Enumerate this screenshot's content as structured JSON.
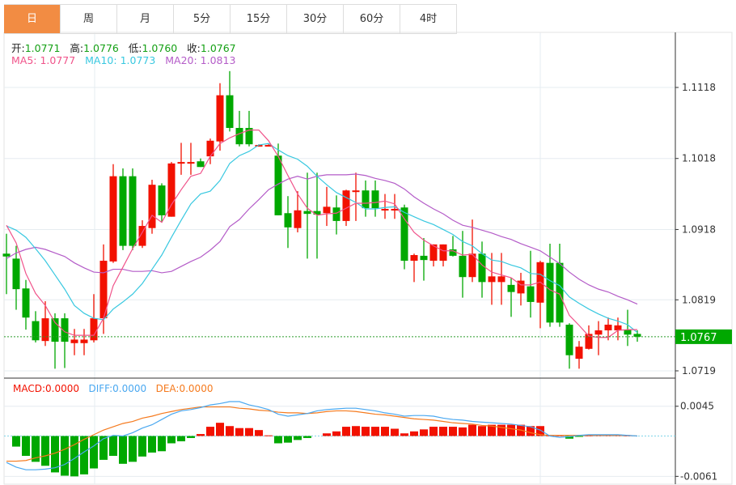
{
  "tabs": [
    "日",
    "周",
    "月",
    "5分",
    "15分",
    "30分",
    "60分",
    "4时"
  ],
  "active_tab": 0,
  "ohlc_info": {
    "open_label": "开:",
    "open": "1.0771",
    "high_label": "高:",
    "high": "1.0776",
    "low_label": "低:",
    "low": "1.0760",
    "close_label": "收:",
    "close": "1.0767"
  },
  "ma_info": {
    "ma5": "MA5: 1.0777",
    "ma10": "MA10: 1.0773",
    "ma20": "MA20: 1.0813"
  },
  "macd_info": {
    "macd": "MACD:0.0000",
    "diff": "DIFF:0.0000",
    "dea": "DEA:0.0000"
  },
  "current_price": "1.0767",
  "colors": {
    "up": "#f21100",
    "down": "#00a800",
    "ma5": "#f0538a",
    "ma10": "#38c8e0",
    "ma20": "#b45cc8",
    "diff": "#4aa8f0",
    "dea": "#f57a1e",
    "tab_active": "#f28c43"
  },
  "chart_data": {
    "type": "candlestick",
    "price_axis": {
      "ticks": [
        "1.1118",
        "1.1018",
        "1.0918",
        "1.0819",
        "1.0719"
      ],
      "range": [
        1.0719,
        1.1118
      ]
    },
    "macd_axis": {
      "ticks": [
        "0.0045",
        "-0.0061"
      ],
      "range": [
        -0.0061,
        0.0045
      ]
    },
    "candles": [
      [
        1.0884,
        1.0912,
        1.0827,
        1.088
      ],
      [
        1.0877,
        1.0895,
        1.0805,
        1.0834
      ],
      [
        1.0835,
        1.0847,
        1.0777,
        1.0794
      ],
      [
        1.0789,
        1.0803,
        1.0759,
        1.0762
      ],
      [
        1.0761,
        1.0817,
        1.0754,
        1.0793
      ],
      [
        1.0793,
        1.08,
        1.0722,
        1.076
      ],
      [
        1.0793,
        1.08,
        1.0723,
        1.076
      ],
      [
        1.0758,
        1.0778,
        1.0741,
        1.0763
      ],
      [
        1.0758,
        1.0778,
        1.0741,
        1.0763
      ],
      [
        1.0762,
        1.0827,
        1.0759,
        1.0793
      ],
      [
        1.0793,
        1.0897,
        1.0771,
        1.0874
      ],
      [
        1.0873,
        1.101,
        1.0871,
        1.0993
      ],
      [
        1.0993,
        1.1004,
        1.0889,
        1.0895
      ],
      [
        1.0993,
        1.1004,
        1.0889,
        1.0895
      ],
      [
        1.0895,
        1.0931,
        1.0892,
        1.0923
      ],
      [
        1.092,
        1.0988,
        1.0912,
        1.0981
      ],
      [
        1.098,
        1.0983,
        1.0929,
        1.0938
      ],
      [
        1.0936,
        1.1013,
        1.0936,
        1.1011
      ],
      [
        1.1011,
        1.104,
        1.0995,
        1.1013
      ],
      [
        1.1011,
        1.104,
        1.0995,
        1.1013
      ],
      [
        1.1014,
        1.1018,
        1.1006,
        1.1006
      ],
      [
        1.1021,
        1.1046,
        1.101,
        1.1043
      ],
      [
        1.1042,
        1.1124,
        1.1029,
        1.1107
      ],
      [
        1.1107,
        1.1141,
        1.1056,
        1.1061
      ],
      [
        1.1061,
        1.1085,
        1.1035,
        1.1038
      ],
      [
        1.1061,
        1.1085,
        1.1035,
        1.1038
      ],
      [
        1.1036,
        1.1038,
        1.1035,
        1.1037
      ],
      [
        1.1036,
        1.1038,
        1.1035,
        1.1037
      ],
      [
        1.1022,
        1.1039,
        1.0938,
        1.0938
      ],
      [
        1.0941,
        1.0965,
        1.0892,
        1.0921
      ],
      [
        1.092,
        1.0972,
        1.0914,
        1.0945
      ],
      [
        1.0944,
        1.0998,
        1.0877,
        1.094
      ],
      [
        1.0944,
        1.0998,
        1.0877,
        1.0939
      ],
      [
        1.0941,
        1.0978,
        1.0923,
        1.095
      ],
      [
        1.0949,
        1.0966,
        1.0911,
        1.093
      ],
      [
        1.093,
        1.0974,
        1.0923,
        1.0973
      ],
      [
        1.0972,
        1.0998,
        1.093,
        1.0973
      ],
      [
        1.0973,
        1.0987,
        1.0936,
        1.0948
      ],
      [
        1.0973,
        1.0987,
        1.0936,
        1.0948
      ],
      [
        1.0946,
        1.0968,
        1.0933,
        1.0947
      ],
      [
        1.0946,
        1.0968,
        1.0933,
        1.0947
      ],
      [
        1.0949,
        1.0953,
        1.0862,
        1.0874
      ],
      [
        1.0874,
        1.0884,
        1.0844,
        1.0882
      ],
      [
        1.0881,
        1.0906,
        1.0846,
        1.0875
      ],
      [
        1.0874,
        1.0897,
        1.0866,
        1.0897
      ],
      [
        1.0874,
        1.0897,
        1.0866,
        1.0897
      ],
      [
        1.089,
        1.0909,
        1.088,
        1.0881
      ],
      [
        1.0881,
        1.0916,
        1.0822,
        1.0851
      ],
      [
        1.0851,
        1.0932,
        1.0844,
        1.0884
      ],
      [
        1.0884,
        1.0901,
        1.0822,
        1.0844
      ],
      [
        1.0844,
        1.0885,
        1.0812,
        1.0852
      ],
      [
        1.0844,
        1.0885,
        1.0812,
        1.0852
      ],
      [
        1.084,
        1.085,
        1.0795,
        1.083
      ],
      [
        1.0828,
        1.0857,
        1.0811,
        1.0846
      ],
      [
        1.0838,
        1.0888,
        1.0794,
        1.0816
      ],
      [
        1.0815,
        1.0874,
        1.0779,
        1.0872
      ],
      [
        1.0871,
        1.0898,
        1.0781,
        1.0787
      ],
      [
        1.0871,
        1.0898,
        1.0781,
        1.0787
      ],
      [
        1.0784,
        1.0786,
        1.0722,
        1.0741
      ],
      [
        1.0736,
        1.0761,
        1.0722,
        1.0753
      ],
      [
        1.075,
        1.0783,
        1.0749,
        1.0771
      ],
      [
        1.077,
        1.0789,
        1.0741,
        1.0776
      ],
      [
        1.0776,
        1.0794,
        1.0762,
        1.0784
      ],
      [
        1.0776,
        1.0794,
        1.0762,
        1.0783
      ],
      [
        1.0777,
        1.0805,
        1.0754,
        1.077
      ],
      [
        1.0771,
        1.0776,
        1.076,
        1.0767
      ]
    ],
    "ma5": [
      1.0924,
      1.0899,
      1.0856,
      1.0828,
      1.0811,
      1.0787,
      1.0774,
      1.0769,
      1.0769,
      1.0769,
      1.0793,
      1.0839,
      1.0865,
      1.0891,
      1.0914,
      1.0938,
      1.0928,
      1.0953,
      1.0974,
      1.0993,
      1.0997,
      1.1021,
      1.1039,
      1.1047,
      1.1053,
      1.1058,
      1.1058,
      1.1043,
      1.1021,
      1.0994,
      1.0968,
      1.0948,
      1.0938,
      1.094,
      1.0941,
      1.0948,
      1.0955,
      1.0955,
      1.0956,
      1.0958,
      1.0954,
      1.0933,
      1.0914,
      1.0903,
      1.0895,
      1.0888,
      1.0888,
      1.0882,
      1.0883,
      1.0868,
      1.0858,
      1.0854,
      1.085,
      1.084,
      1.084,
      1.0844,
      1.0833,
      1.0827,
      1.0797,
      1.0783,
      1.0768,
      1.0766,
      1.0766,
      1.0776,
      1.0777,
      1.0777
    ],
    "ma10": [
      1.0923,
      1.0917,
      1.0907,
      1.0891,
      1.0874,
      1.0854,
      1.0834,
      1.0811,
      1.08,
      1.0793,
      1.0791,
      1.0806,
      1.0816,
      1.0827,
      1.0842,
      1.0862,
      1.0882,
      1.0907,
      1.0931,
      1.0954,
      1.0968,
      1.0972,
      1.0987,
      1.1011,
      1.1022,
      1.1028,
      1.1037,
      1.1039,
      1.103,
      1.1022,
      1.1017,
      1.1007,
      1.0993,
      1.0981,
      1.097,
      1.0963,
      1.0956,
      1.0947,
      1.0947,
      1.0949,
      1.095,
      1.0942,
      1.0936,
      1.093,
      1.0925,
      1.0918,
      1.0911,
      1.0901,
      1.0895,
      1.0884,
      1.0875,
      1.0873,
      1.0868,
      1.0864,
      1.0856,
      1.0855,
      1.0846,
      1.0839,
      1.0823,
      1.0814,
      1.0806,
      1.0799,
      1.0793,
      1.0789,
      1.0784,
      1.0773
    ],
    "ma20": [
      1.0877,
      1.0885,
      1.089,
      1.0893,
      1.089,
      1.0885,
      1.088,
      1.0871,
      1.0864,
      1.0858,
      1.0857,
      1.0862,
      1.0862,
      1.0859,
      1.0859,
      1.086,
      1.0857,
      1.0859,
      1.0866,
      1.0873,
      1.0879,
      1.0889,
      1.0901,
      1.0922,
      1.0932,
      1.0947,
      1.096,
      1.0974,
      1.0982,
      1.0989,
      1.0993,
      1.0989,
      1.0993,
      1.0995,
      1.0995,
      1.0995,
      1.0996,
      1.0994,
      1.099,
      1.0987,
      1.0983,
      1.0975,
      1.0964,
      1.0955,
      1.0947,
      1.094,
      1.0931,
      1.0924,
      1.0921,
      1.0917,
      1.0913,
      1.0908,
      1.0904,
      1.0898,
      1.0893,
      1.0888,
      1.0879,
      1.087,
      1.0858,
      1.0848,
      1.084,
      1.0834,
      1.083,
      1.0824,
      1.0819,
      1.0813
    ],
    "macd_hist": [
      0,
      -0.0016,
      -0.003,
      -0.0039,
      -0.0045,
      -0.0055,
      -0.006,
      -0.0061,
      -0.0058,
      -0.0049,
      -0.0036,
      -0.003,
      -0.0042,
      -0.0039,
      -0.0031,
      -0.0025,
      -0.0023,
      -0.0011,
      -0.0008,
      -0.0003,
      0.0003,
      0.0014,
      0.002,
      0.0015,
      0.0012,
      0.0012,
      0.0009,
      0.0001,
      -0.0011,
      -0.001,
      -0.0006,
      -0.0003,
      0.0,
      0.0004,
      0.0007,
      0.0014,
      0.0015,
      0.0014,
      0.0014,
      0.0014,
      0.0011,
      0.0004,
      0.0007,
      0.001,
      0.0014,
      0.0014,
      0.0014,
      0.0013,
      0.0017,
      0.0015,
      0.0017,
      0.0017,
      0.0017,
      0.0017,
      0.0015,
      0.0015,
      0.0001,
      0.0001,
      -0.0004,
      -0.0001,
      0.0001,
      0.0002,
      0.0002,
      0.0002,
      0.0001,
      0
    ],
    "diff": [
      -0.004,
      -0.0047,
      -0.0051,
      -0.0051,
      -0.005,
      -0.0048,
      -0.0043,
      -0.0034,
      -0.0024,
      -0.0015,
      -0.0004,
      0.0001,
      0.0,
      0.0005,
      0.0012,
      0.0017,
      0.0025,
      0.0033,
      0.0038,
      0.004,
      0.0043,
      0.0047,
      0.0049,
      0.0052,
      0.0052,
      0.0047,
      0.0044,
      0.004,
      0.0033,
      0.003,
      0.0032,
      0.0034,
      0.0038,
      0.004,
      0.0041,
      0.0042,
      0.0042,
      0.004,
      0.0038,
      0.0035,
      0.0033,
      0.003,
      0.0031,
      0.0031,
      0.003,
      0.0027,
      0.0025,
      0.0024,
      0.0022,
      0.0021,
      0.002,
      0.0019,
      0.0018,
      0.0016,
      0.0014,
      0.0009,
      0.0,
      -0.0002,
      -0.0001,
      0.0001,
      0.0002,
      0.0002,
      0.0002,
      0.0002,
      0.0001,
      0
    ],
    "dea": [
      -0.0038,
      -0.0038,
      -0.0037,
      -0.0033,
      -0.003,
      -0.0026,
      -0.002,
      -0.0013,
      -0.0005,
      0.0002,
      0.0009,
      0.0014,
      0.0019,
      0.0022,
      0.0027,
      0.003,
      0.0034,
      0.0037,
      0.004,
      0.0042,
      0.0044,
      0.0044,
      0.0044,
      0.0044,
      0.0042,
      0.0041,
      0.0039,
      0.0038,
      0.0036,
      0.0035,
      0.0035,
      0.0034,
      0.0035,
      0.0037,
      0.0038,
      0.0038,
      0.0037,
      0.0035,
      0.0033,
      0.0032,
      0.003,
      0.0028,
      0.0026,
      0.0025,
      0.0024,
      0.0022,
      0.002,
      0.0019,
      0.0018,
      0.0016,
      0.0015,
      0.0013,
      0.0011,
      0.0009,
      0.0005,
      0.0002,
      0.0001,
      0.0001,
      0.0001,
      0.0001,
      0.0001,
      0.0001,
      0.0001,
      0.0001,
      0.0001,
      0
    ]
  }
}
